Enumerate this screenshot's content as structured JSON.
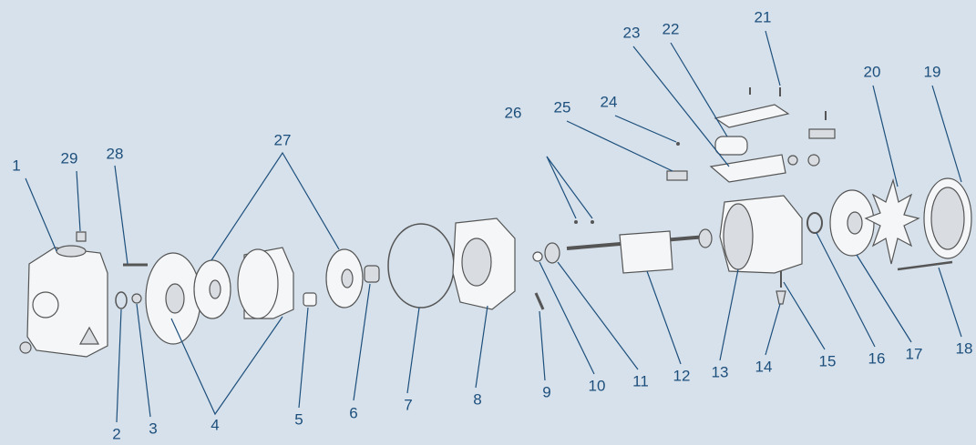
{
  "callouts": [
    "1",
    "2",
    "3",
    "4",
    "5",
    "6",
    "7",
    "8",
    "9",
    "10",
    "11",
    "12",
    "13",
    "14",
    "15",
    "16",
    "17",
    "18",
    "19",
    "20",
    "21",
    "22",
    "23",
    "24",
    "25",
    "26",
    "27",
    "28",
    "29"
  ]
}
